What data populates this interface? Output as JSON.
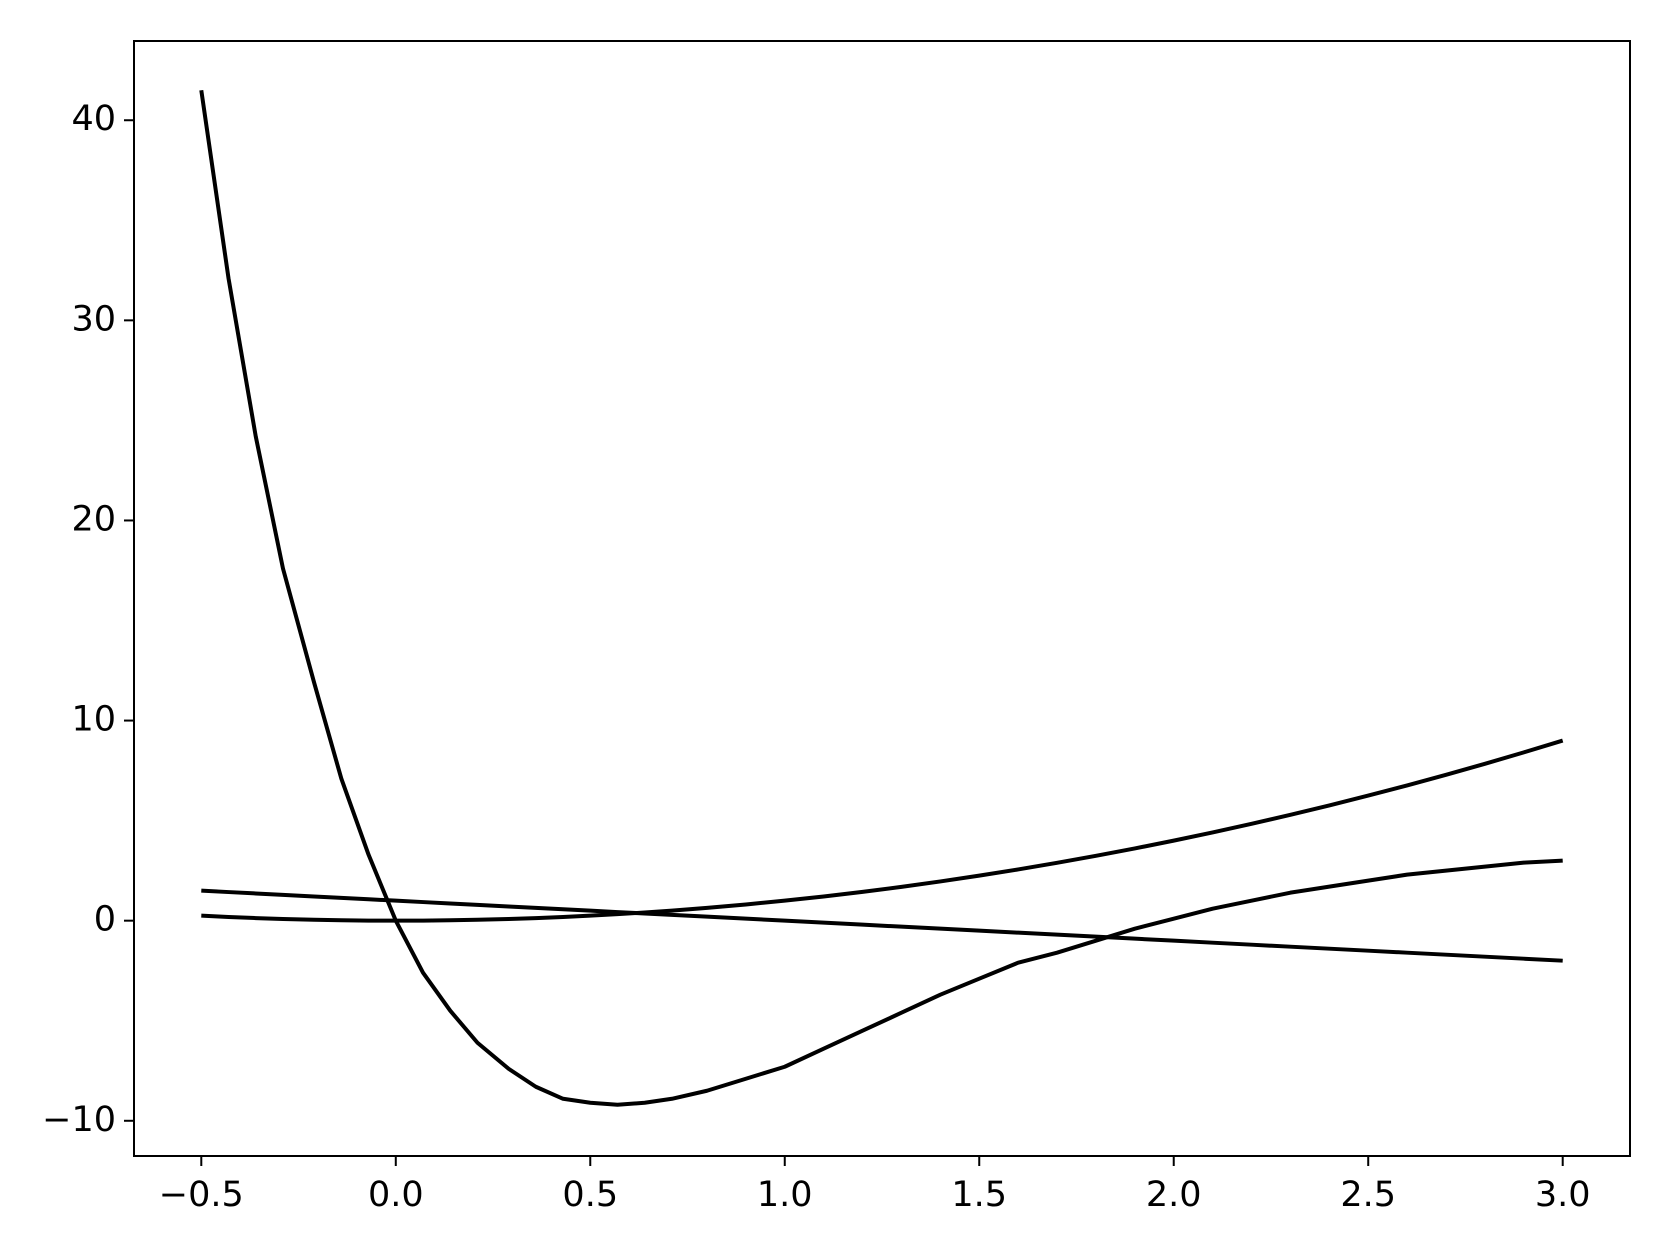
{
  "chart_data": {
    "type": "line",
    "x": [
      -0.5,
      -0.43,
      -0.36,
      -0.29,
      -0.21,
      -0.14,
      -0.07,
      0,
      0.07,
      0.14,
      0.21,
      0.29,
      0.36,
      0.43,
      0.5,
      0.57,
      0.64,
      0.71,
      0.8,
      0.9,
      1.0,
      1.1,
      1.2,
      1.3,
      1.4,
      1.5,
      1.6,
      1.7,
      1.8,
      1.9,
      2.0,
      2.1,
      2.2,
      2.3,
      2.4,
      2.5,
      2.6,
      2.7,
      2.8,
      2.9,
      3.0
    ],
    "series": [
      {
        "color": "#000000",
        "values": [
          41.5,
          32.1,
          24.2,
          17.6,
          11.9,
          7.1,
          3.3,
          0,
          -2.6,
          -4.5,
          -6.1,
          -7.4,
          -8.3,
          -8.9,
          -9.1,
          -9.2,
          -9.1,
          -8.9,
          -8.5,
          -7.9,
          -7.3,
          -6.4,
          -5.5,
          -4.6,
          -3.7,
          -2.9,
          -2.1,
          -1.6,
          -1.0,
          -0.4,
          0.1,
          0.6,
          1.0,
          1.4,
          1.7,
          2.0,
          2.3,
          2.5,
          2.7,
          2.9,
          3.0
        ]
      },
      {
        "color": "#000000",
        "values": [
          0.25,
          0.1849,
          0.1296,
          0.0841,
          0.0441,
          0.0196,
          0.0049,
          0,
          0.0049,
          0.0196,
          0.0441,
          0.0841,
          0.1296,
          0.1849,
          0.25,
          0.3249,
          0.4096,
          0.5041,
          0.64,
          0.81,
          1,
          1.21,
          1.44,
          1.69,
          1.96,
          2.25,
          2.56,
          2.89,
          3.24,
          3.61,
          4,
          4.41,
          4.84,
          5.29,
          5.76,
          6.25,
          6.76,
          7.29,
          7.84,
          8.41,
          9
        ]
      },
      {
        "color": "#000000",
        "values": [
          1.5,
          1.43,
          1.36,
          1.29,
          1.21,
          1.14,
          1.07,
          1,
          0.93,
          0.86,
          0.79,
          0.71,
          0.64,
          0.57,
          0.5,
          0.43,
          0.36,
          0.29,
          0.2,
          0.1,
          0,
          -0.1,
          -0.2,
          -0.3,
          -0.4,
          -0.5,
          -0.6,
          -0.7,
          -0.8,
          -0.9,
          -1,
          -1.1,
          -1.2,
          -1.3,
          -1.4,
          -1.5,
          -1.6,
          -1.7,
          -1.8,
          -1.9,
          -2
        ]
      }
    ],
    "xlim": [
      -0.673,
      3.173
    ],
    "ylim": [
      -11.76,
      43.96
    ],
    "xticks": [
      {
        "value": -0.5,
        "label": "−0.5"
      },
      {
        "value": 0,
        "label": "0.0"
      },
      0.5,
      {
        "value": 1,
        "label": "1.0"
      },
      1.5,
      {
        "value": 2,
        "label": "2.0"
      },
      2.5,
      {
        "value": 3,
        "label": "3.0"
      }
    ],
    "yticks": [
      {
        "value": -10,
        "label": "−10"
      },
      0,
      10,
      20,
      30,
      40
    ],
    "grid": false
  }
}
